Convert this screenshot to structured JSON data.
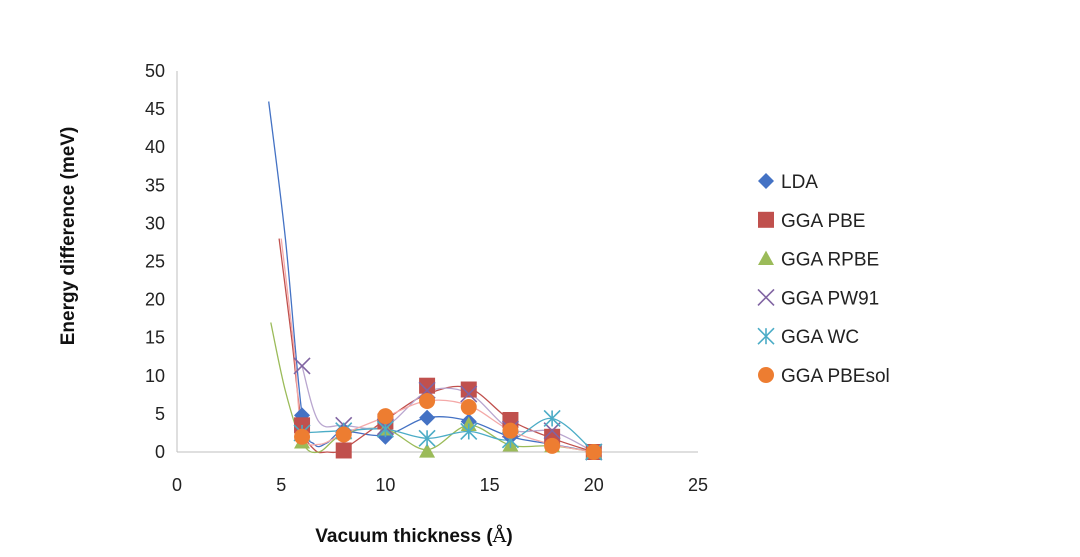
{
  "chart_data": {
    "type": "scatter",
    "xlabel": "Vacuum thickness (",
    "xlabel_unit": "Å",
    "xlabel_close": ")",
    "ylabel": "Energy difference (meV)",
    "xlim": [
      0,
      25
    ],
    "ylim": [
      0,
      50
    ],
    "x_ticks": [
      "0",
      "5",
      "10",
      "15",
      "20",
      "25"
    ],
    "y_ticks": [
      "0",
      "5",
      "10",
      "15",
      "20",
      "25",
      "30",
      "35",
      "40",
      "45",
      "50"
    ],
    "grid": false,
    "legend_position": "right",
    "series": [
      {
        "name": "LDA",
        "marker": "diamond",
        "color": "#4472C4",
        "x": [
          6,
          8,
          10,
          12,
          14,
          16,
          18,
          20
        ],
        "y": [
          4.8,
          2.8,
          2.0,
          4.5,
          4.0,
          2.0,
          1.2,
          0.0
        ],
        "trend_color": "#4472C4",
        "trend": [
          [
            4.4,
            46
          ],
          [
            5.2,
            28
          ],
          [
            6.0,
            5.0
          ],
          [
            6.6,
            1.0
          ],
          [
            7.2,
            1.2
          ],
          [
            8.0,
            2.7
          ],
          [
            10.0,
            2.2
          ],
          [
            12.0,
            4.5
          ],
          [
            14.0,
            4.1
          ],
          [
            16.0,
            2.0
          ],
          [
            18.0,
            1.0
          ],
          [
            20.0,
            0.0
          ]
        ]
      },
      {
        "name": "GGA PBE",
        "marker": "square",
        "color": "#C0504D",
        "x": [
          6,
          8,
          10,
          12,
          14,
          16,
          18,
          20
        ],
        "y": [
          3.5,
          0.2,
          4.0,
          8.7,
          8.2,
          4.2,
          2.0,
          0.0
        ],
        "trend_color": "#C0504D",
        "trend": [
          [
            4.9,
            28
          ],
          [
            5.5,
            15
          ],
          [
            6.0,
            3.5
          ],
          [
            6.6,
            0.3
          ],
          [
            7.2,
            0.0
          ],
          [
            8.0,
            0.4
          ],
          [
            10.0,
            4.2
          ],
          [
            12.0,
            7.6
          ],
          [
            14.0,
            8.4
          ],
          [
            16.0,
            4.2
          ],
          [
            18.0,
            1.8
          ],
          [
            20.0,
            0.0
          ]
        ]
      },
      {
        "name": "GGA RPBE",
        "marker": "triangle",
        "color": "#9BBB59",
        "x": [
          6,
          8,
          10,
          12,
          14,
          16,
          18,
          20
        ],
        "y": [
          1.3,
          2.5,
          3.0,
          0.1,
          3.6,
          0.9,
          0.8,
          0.0
        ],
        "trend_color": "#9BBB59",
        "trend": [
          [
            4.5,
            17
          ],
          [
            5.2,
            8
          ],
          [
            6.0,
            1.3
          ],
          [
            6.8,
            0.0
          ],
          [
            8.0,
            2.4
          ],
          [
            10.0,
            3.0
          ],
          [
            12.0,
            0.3
          ],
          [
            14.0,
            3.5
          ],
          [
            16.0,
            0.9
          ],
          [
            18.0,
            0.8
          ],
          [
            20.0,
            0.0
          ]
        ]
      },
      {
        "name": "GGA PW91",
        "marker": "x",
        "color": "#8064A2",
        "x": [
          6,
          8,
          10,
          12,
          14,
          16,
          18,
          20
        ],
        "y": [
          11.3,
          3.5,
          3.3,
          8.1,
          7.6,
          3.0,
          2.8,
          0.0
        ],
        "trend_color": "#B9A6CF",
        "trend": [
          [
            6.0,
            11.3
          ],
          [
            6.8,
            4.0
          ],
          [
            8.0,
            3.5
          ],
          [
            10.0,
            3.4
          ],
          [
            12.0,
            7.9
          ],
          [
            14.0,
            7.7
          ],
          [
            16.0,
            3.0
          ],
          [
            18.0,
            2.7
          ],
          [
            20.0,
            0.0
          ]
        ]
      },
      {
        "name": "GGA WC",
        "marker": "asterisk",
        "color": "#4BACC6",
        "x": [
          6,
          8,
          10,
          12,
          14,
          16,
          18,
          20
        ],
        "y": [
          2.5,
          2.8,
          3.0,
          1.8,
          2.7,
          1.6,
          4.4,
          0.0
        ],
        "trend_color": "#4BACC6",
        "trend": [
          [
            6.0,
            2.5
          ],
          [
            8.0,
            2.8
          ],
          [
            10.0,
            3.0
          ],
          [
            12.0,
            1.8
          ],
          [
            14.0,
            2.7
          ],
          [
            16.0,
            1.6
          ],
          [
            18.0,
            4.4
          ],
          [
            20.0,
            0.0
          ]
        ]
      },
      {
        "name": "GGA PBEsol",
        "marker": "circle",
        "color": "#ED7D31",
        "x": [
          6,
          8,
          10,
          12,
          14,
          16,
          18,
          20
        ],
        "y": [
          2.0,
          2.3,
          4.7,
          6.7,
          5.9,
          2.8,
          0.8,
          0.0
        ],
        "trend_color": "#F4A9A8",
        "trend": [
          [
            5.0,
            28
          ],
          [
            5.6,
            14
          ],
          [
            6.0,
            2.5
          ],
          [
            6.8,
            1.0
          ],
          [
            8.0,
            2.4
          ],
          [
            10.0,
            4.6
          ],
          [
            12.0,
            6.7
          ],
          [
            14.0,
            6.1
          ],
          [
            16.0,
            2.8
          ],
          [
            18.0,
            1.0
          ],
          [
            20.0,
            0.0
          ]
        ]
      }
    ]
  }
}
